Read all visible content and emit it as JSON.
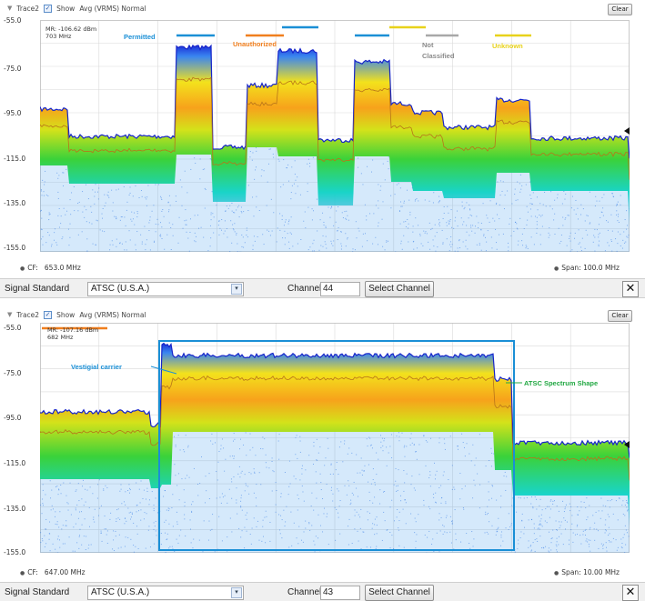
{
  "top": {
    "trace": {
      "name": "Trace2",
      "show_label": "Show",
      "mode": "Avg (VRMS) Normal"
    },
    "clear_label": "Clear",
    "y_ticks": [
      "-55.0",
      "-75.0",
      "-95.0",
      "-115.0",
      "-135.0",
      "-155.0"
    ],
    "marker": {
      "line1": "MR: -106.62 dBm",
      "line2": "703 MHz"
    },
    "legend": [
      {
        "label": "Permitted",
        "color": "#1a8fd6"
      },
      {
        "label": "Unauthorized",
        "color": "#f07f1e"
      },
      {
        "label": "Not Classified",
        "color": "#a8a8a8"
      },
      {
        "label": "Unknown",
        "color": "#e8d21a"
      }
    ],
    "cf_label": "CF:",
    "cf_value": "653.0 MHz",
    "span_label": "Span:",
    "span_value": "100.0 MHz",
    "controls": {
      "signal_standard_label": "Signal Standard",
      "signal_standard_value": "ATSC (U.S.A.)",
      "channel_label": "Channel",
      "channel_value": "44",
      "select_channel_label": "Select Channel",
      "close_label": "✕"
    }
  },
  "bottom": {
    "trace": {
      "name": "Trace2",
      "show_label": "Show",
      "mode": "Avg (VRMS) Normal"
    },
    "clear_label": "Clear",
    "y_ticks": [
      "-55.0",
      "-75.0",
      "-95.0",
      "-115.0",
      "-135.0",
      "-155.0"
    ],
    "marker": {
      "line1": "MR: -107.16 dBm",
      "line2": "682 MHz"
    },
    "annotations": {
      "vestigial": "Vestigial carrier",
      "atsc_shape": "ATSC Spectrum Shape"
    },
    "colors": {
      "vestigial": "#1a8fd6",
      "atsc_shape": "#22a843",
      "box": "#1a8fd6",
      "marker": "#f07f1e"
    },
    "cf_label": "CF:",
    "cf_value": "647.00 MHz",
    "span_label": "Span:",
    "span_value": "10.00 MHz",
    "controls": {
      "signal_standard_label": "Signal Standard",
      "signal_standard_value": "ATSC (U.S.A.)",
      "channel_label": "Channel",
      "channel_value": "43",
      "select_channel_label": "Select Channel",
      "close_label": "✕"
    }
  }
}
